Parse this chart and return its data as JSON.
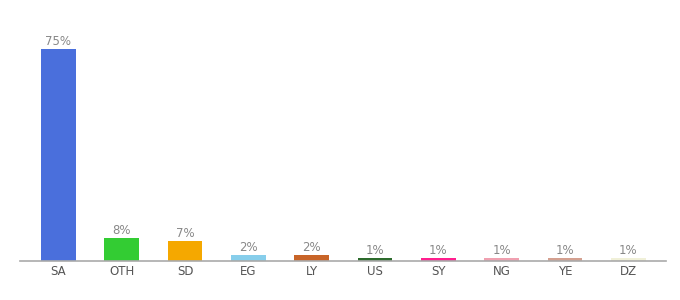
{
  "categories": [
    "SA",
    "OTH",
    "SD",
    "EG",
    "LY",
    "US",
    "SY",
    "NG",
    "YE",
    "DZ"
  ],
  "values": [
    75,
    8,
    7,
    2,
    2,
    1,
    1,
    1,
    1,
    1
  ],
  "bar_colors": [
    "#4a6fdc",
    "#33cc33",
    "#f5a800",
    "#87ceeb",
    "#c86428",
    "#2d6b2d",
    "#ff1f8e",
    "#f0a0b0",
    "#d4a090",
    "#f0f0d8"
  ],
  "labels": [
    "75%",
    "8%",
    "7%",
    "2%",
    "2%",
    "1%",
    "1%",
    "1%",
    "1%",
    "1%"
  ],
  "background_color": "#ffffff",
  "label_color": "#888888",
  "label_fontsize": 8.5,
  "tick_fontsize": 8.5,
  "tick_color": "#555555",
  "ylim": [
    0,
    85
  ],
  "bar_width": 0.55,
  "figsize": [
    6.8,
    3.0
  ],
  "dpi": 100
}
